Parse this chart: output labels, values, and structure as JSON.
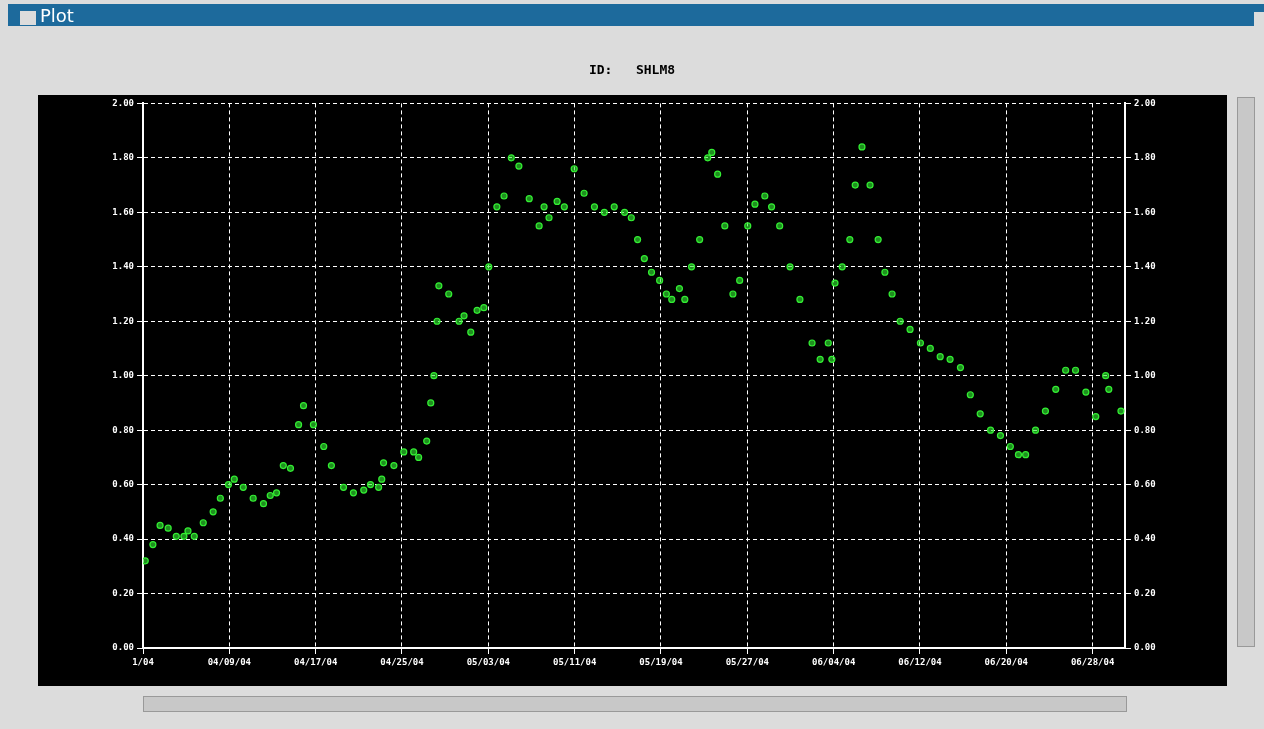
{
  "chart_data": {
    "type": "scatter",
    "title": "ID:   SHLM8",
    "annotations": [
      "Plot"
    ],
    "xlim": [
      "--04-01T00:00",
      "--07-01T00:00"
    ],
    "xticks": [
      {
        "value": "--04-01T00:00",
        "label": "1/04"
      },
      {
        "value": "--04-09T00:00",
        "label": "04/09/04"
      },
      {
        "value": "--04-17T00:00",
        "label": "04/17/04"
      },
      {
        "value": "--04-25T00:00",
        "label": "04/25/04"
      },
      {
        "value": "--05-03T00:00",
        "label": "05/03/04"
      },
      {
        "value": "--05-11T00:00",
        "label": "05/11/04"
      },
      {
        "value": "--05-19T00:00",
        "label": "05/19/04"
      },
      {
        "value": "--05-27T00:00",
        "label": "05/27/04"
      },
      {
        "value": "--06-04T00:00",
        "label": "06/04/04"
      },
      {
        "value": "--06-12T00:00",
        "label": "06/12/04"
      },
      {
        "value": "--06-20T00:00",
        "label": "06/20/04"
      },
      {
        "value": "--06-28T00:00",
        "label": "06/28/04"
      }
    ],
    "ylim": [
      0,
      2
    ],
    "yticks": [
      {
        "value": 0,
        "label": "0.00"
      },
      {
        "value": 0.2,
        "label": "0.20"
      },
      {
        "value": 0.4,
        "label": "0.40"
      },
      {
        "value": 0.6,
        "label": "0.60"
      },
      {
        "value": 0.8,
        "label": "0.80"
      },
      {
        "value": 1,
        "label": "1.00"
      },
      {
        "value": 1.2,
        "label": "1.20"
      },
      {
        "value": 1.4,
        "label": "1.40"
      },
      {
        "value": 1.6,
        "label": "1.60"
      },
      {
        "value": 1.8,
        "label": "1.80"
      },
      {
        "value": 2,
        "label": "2.00"
      }
    ],
    "y2lim": [
      0,
      2
    ],
    "y2ticks": [
      {
        "value": 0,
        "label": "0.00"
      },
      {
        "value": 0.2,
        "label": "0.20"
      },
      {
        "value": 0.4,
        "label": "0.40"
      },
      {
        "value": 0.6,
        "label": "0.60"
      },
      {
        "value": 0.8,
        "label": "0.80"
      },
      {
        "value": 1,
        "label": "1.00"
      },
      {
        "value": 1.2,
        "label": "1.20"
      },
      {
        "value": 1.4,
        "label": "1.40"
      },
      {
        "value": 1.6,
        "label": "1.60"
      },
      {
        "value": 1.8,
        "label": "1.80"
      },
      {
        "value": 2,
        "label": "2.00"
      }
    ],
    "grid": true,
    "legend": false,
    "marker": "circle",
    "series": [
      {
        "color": "#33ee33",
        "x": [
          "--04-01T05:00",
          "--04-01T22:00",
          "--04-02T14:00",
          "--04-03T08:00",
          "--04-04T02:00",
          "--04-04T19:00",
          "--04-05T04:00",
          "--04-05T18:00",
          "--04-06T14:00",
          "--04-07T12:00",
          "--04-08T04:00",
          "--04-08T22:00",
          "--04-09T11:00",
          "--04-10T07:00",
          "--04-11T05:00",
          "--04-12T04:00",
          "--04-12T19:00",
          "--04-13T09:00",
          "--04-14T00:00",
          "--04-14T16:00",
          "--04-15T10:00",
          "--04-15T21:00",
          "--04-16T19:00",
          "--04-17T18:00",
          "--04-18T11:00",
          "--04-19T14:00",
          "--04-20T12:00",
          "--04-21T11:00",
          "--04-22T02:00",
          "--04-22T20:00",
          "--04-23T03:00",
          "--04-23T07:00",
          "--04-24T06:00",
          "--04-25T04:00",
          "--04-26T02:00",
          "--04-26T13:00",
          "--04-27T07:00",
          "--04-27T16:00",
          "--04-27T23:00",
          "--04-28T06:00",
          "--04-28T10:00",
          "--04-29T08:00",
          "--04-30T07:00",
          "--04-30T18:00",
          "--05-01T09:00",
          "--05-01T23:00",
          "--05-02T14:00",
          "--05-03T01:00",
          "--05-03T19:00",
          "--05-04T11:00",
          "--05-05T03:00",
          "--05-05T20:00",
          "--05-06T19:00",
          "--05-07T17:00",
          "--05-08T04:00",
          "--05-08T15:00",
          "--05-09T09:00",
          "--05-10T01:00",
          "--05-10T23:00",
          "--05-11T21:00",
          "--05-12T20:00",
          "--05-13T18:00",
          "--05-14T16:00",
          "--05-15T15:00",
          "--05-16T06:00",
          "--05-16T20:00",
          "--05-17T11:00",
          "--05-18T03:00",
          "--05-18T21:00",
          "--05-19T12:00",
          "--05-20T00:00",
          "--05-20T17:00",
          "--05-21T05:00",
          "--05-21T20:00",
          "--05-22T14:00",
          "--05-23T08:00",
          "--05-23T17:00",
          "--05-24T06:00",
          "--05-24T22:00",
          "--05-25T16:00",
          "--05-26T07:00",
          "--05-27T01:00",
          "--05-27T17:00",
          "--05-28T15:00",
          "--05-29T06:00",
          "--05-30T00:00",
          "--05-30T23:00",
          "--05-31T21:00",
          "--06-02T00:00",
          "--06-02T18:00",
          "--06-03T12:00",
          "--06-03T20:00",
          "--06-04T03:00",
          "--06-04T19:00",
          "--06-05T12:00",
          "--06-06T00:00",
          "--06-06T15:00",
          "--06-07T09:00",
          "--06-08T03:00",
          "--06-08T18:00",
          "--06-09T10:00",
          "--06-10T04:00",
          "--06-11T02:00",
          "--06-12T01:00",
          "--06-12T23:00",
          "--06-13T21:00",
          "--06-14T19:00",
          "--06-15T18:00",
          "--06-16T16:00",
          "--06-17T14:00",
          "--06-18T13:00",
          "--06-19T11:00",
          "--06-20T09:00",
          "--06-21T03:00",
          "--06-21T19:00",
          "--06-22T17:00",
          "--06-23T15:00",
          "--06-24T14:00",
          "--06-25T12:00",
          "--06-26T10:00",
          "--06-27T09:00",
          "--06-28T07:00",
          "--06-29T05:00",
          "--06-29T12:00",
          "--06-30T15:00"
        ],
        "values": [
          0.32,
          0.38,
          0.45,
          0.44,
          0.41,
          0.41,
          0.43,
          0.41,
          0.46,
          0.5,
          0.55,
          0.6,
          0.62,
          0.59,
          0.55,
          0.53,
          0.56,
          0.57,
          0.67,
          0.66,
          0.82,
          0.89,
          0.82,
          0.74,
          0.67,
          0.59,
          0.57,
          0.58,
          0.6,
          0.59,
          0.62,
          0.68,
          0.67,
          0.72,
          0.72,
          0.7,
          0.76,
          0.9,
          1.0,
          1.2,
          1.33,
          1.3,
          1.2,
          1.22,
          1.16,
          1.24,
          1.25,
          1.4,
          1.62,
          1.66,
          1.8,
          1.77,
          1.65,
          1.55,
          1.62,
          1.58,
          1.64,
          1.62,
          1.76,
          1.67,
          1.62,
          1.6,
          1.62,
          1.6,
          1.58,
          1.5,
          1.43,
          1.38,
          1.35,
          1.3,
          1.28,
          1.32,
          1.28,
          1.4,
          1.5,
          1.8,
          1.82,
          1.74,
          1.55,
          1.3,
          1.35,
          1.55,
          1.63,
          1.66,
          1.62,
          1.55,
          1.4,
          1.28,
          1.12,
          1.06,
          1.12,
          1.06,
          1.34,
          1.4,
          1.5,
          1.7,
          1.84,
          1.7,
          1.5,
          1.38,
          1.3,
          1.2,
          1.17,
          1.12,
          1.1,
          1.07,
          1.06,
          1.03,
          0.93,
          0.86,
          0.8,
          0.78,
          0.74,
          0.71,
          0.71,
          0.8,
          0.87,
          0.95,
          1.02,
          1.02,
          0.94,
          0.85,
          1.0,
          0.95,
          0.87
        ]
      }
    ]
  }
}
